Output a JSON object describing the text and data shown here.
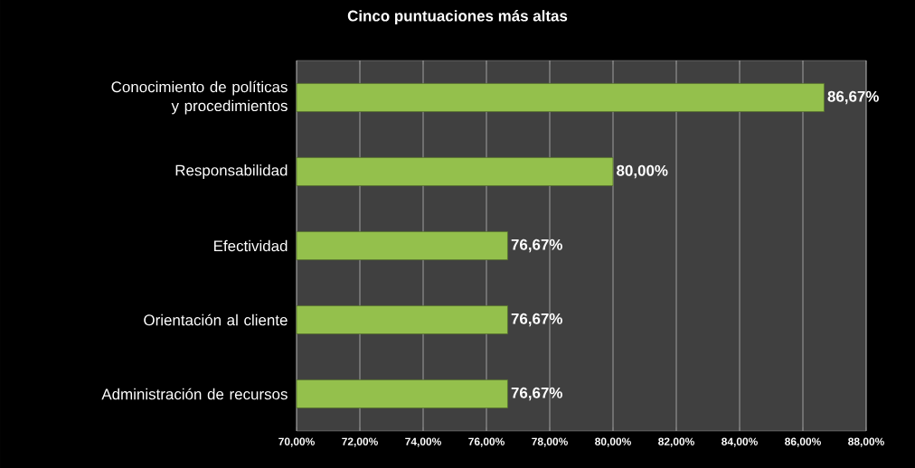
{
  "chart_data": {
    "type": "bar",
    "orientation": "horizontal",
    "title": "Cinco puntuaciones más altas",
    "categories": [
      "Conocimiento de políticas y procedimientos",
      "Responsabilidad",
      "Efectividad",
      "Orientación al cliente",
      "Administración de recursos"
    ],
    "values": [
      86.67,
      80.0,
      76.67,
      76.67,
      76.67
    ],
    "value_labels": [
      "86,67%",
      "80,00%",
      "76,67%",
      "76,67%",
      "76,67%"
    ],
    "color": "#94c04c",
    "xlim": [
      70,
      88
    ],
    "xticks": [
      {
        "value": 70,
        "label": "70,00%"
      },
      {
        "value": 72,
        "label": "72,00%"
      },
      {
        "value": 74,
        "label": "74,00%"
      },
      {
        "value": 76,
        "label": "76,00%"
      },
      {
        "value": 78,
        "label": "78,00%"
      },
      {
        "value": 80,
        "label": "80,00%"
      },
      {
        "value": 82,
        "label": "82,00%"
      },
      {
        "value": 84,
        "label": "84,00%"
      },
      {
        "value": 86,
        "label": "86,00%"
      },
      {
        "value": 88,
        "label": "88,00%"
      }
    ],
    "grid": "x"
  }
}
